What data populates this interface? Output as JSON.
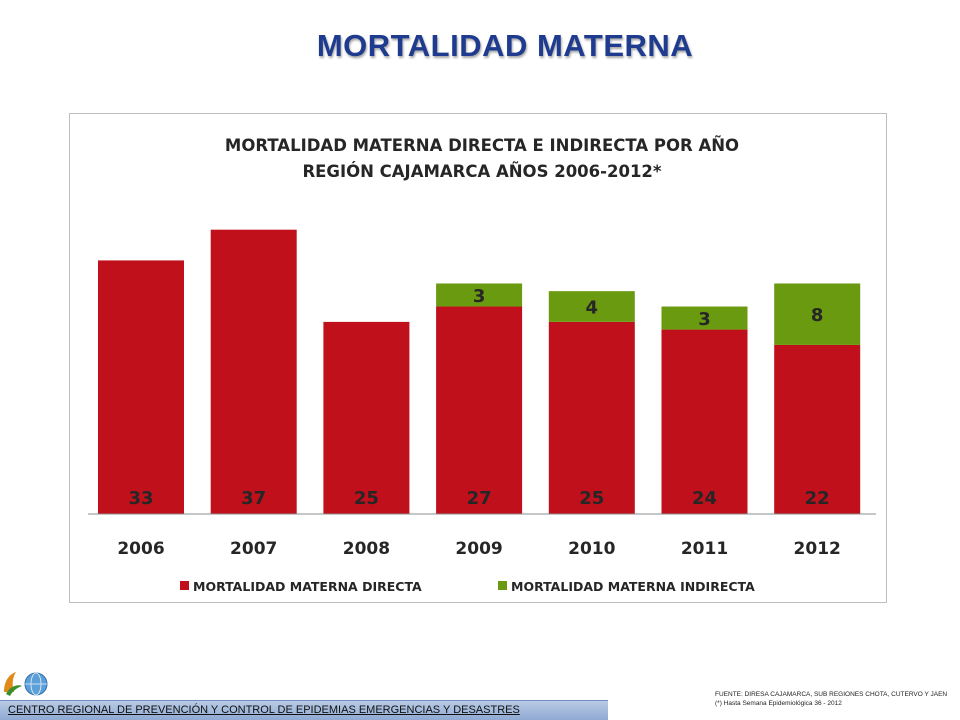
{
  "slide": {
    "title": "MORTALIDAD MATERNA",
    "footer": "CENTRO REGIONAL DE PREVENCIÓN Y CONTROL DE EPIDEMIAS EMERGENCIAS Y DESASTRES",
    "source_line1": "FUENTE: DIRESA CAJAMARCA, SUB REGIONES CHOTA, CUTERVO Y JAEN",
    "source_line2": "(*) Hasta Semana Epidemiológica 36 - 2012"
  },
  "colors": {
    "direct": "#c0101c",
    "indirect": "#6a9a10",
    "title": "#1f3b8f"
  },
  "chart_data": {
    "type": "bar",
    "stacked": true,
    "title_line1": "MORTALIDAD MATERNA DIRECTA E INDIRECTA POR AÑO",
    "title_line2": "REGIÓN CAJAMARCA AÑOS 2006-2012*",
    "categories": [
      "2006",
      "2007",
      "2008",
      "2009",
      "2010",
      "2011",
      "2012"
    ],
    "series": [
      {
        "name": "MORTALIDAD MATERNA DIRECTA",
        "values": [
          33,
          37,
          25,
          27,
          25,
          24,
          22
        ],
        "color": "#c0101c"
      },
      {
        "name": "MORTALIDAD MATERNA INDIRECTA",
        "values": [
          0,
          0,
          0,
          3,
          4,
          3,
          8
        ],
        "color": "#6a9a10"
      }
    ],
    "ylim": [
      0,
      38
    ],
    "legend": "bottom",
    "grid": false
  }
}
